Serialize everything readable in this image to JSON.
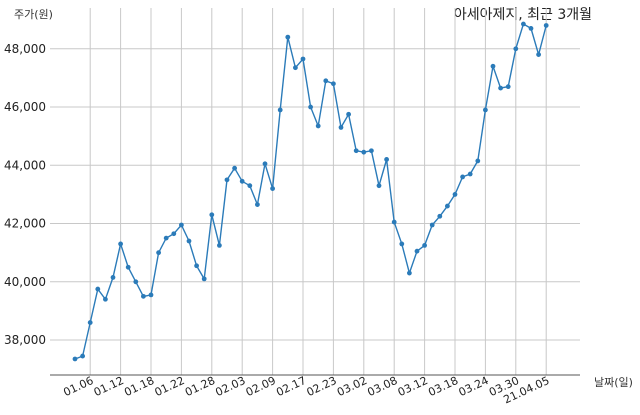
{
  "chart_data": {
    "type": "line",
    "title": "아세아제지, 최근 3개월",
    "ylabel": "주가(원)",
    "xlabel": "날짜(일)",
    "ylim": [
      36800,
      49400
    ],
    "yticks": [
      38000,
      40000,
      42000,
      44000,
      46000,
      48000
    ],
    "ytick_labels": [
      "38,000",
      "40,000",
      "42,000",
      "44,000",
      "46,000",
      "48,000"
    ],
    "xticks": [
      {
        "index": 2,
        "label": "01.06"
      },
      {
        "index": 6,
        "label": "01.12"
      },
      {
        "index": 10,
        "label": "01.18"
      },
      {
        "index": 14,
        "label": "01.22"
      },
      {
        "index": 18,
        "label": "01.28"
      },
      {
        "index": 22,
        "label": "02.03"
      },
      {
        "index": 26,
        "label": "02.09"
      },
      {
        "index": 30,
        "label": "02.17"
      },
      {
        "index": 34,
        "label": "02.23"
      },
      {
        "index": 38,
        "label": "03.02"
      },
      {
        "index": 42,
        "label": "03.08"
      },
      {
        "index": 46,
        "label": "03.12"
      },
      {
        "index": 50,
        "label": "03.18"
      },
      {
        "index": 54,
        "label": "03.24"
      },
      {
        "index": 58,
        "label": "03.30"
      },
      {
        "index": 62,
        "label": "21.04.05"
      }
    ],
    "grid": true,
    "color": "#2b7bb9",
    "series": [
      {
        "values": [
          37350,
          37450,
          38600,
          39750,
          39400,
          40150,
          41300,
          40500,
          40000,
          39500,
          39550,
          41000,
          41500,
          41650,
          41950,
          41400,
          40550,
          40100,
          42300,
          41250,
          43500,
          43900,
          43450,
          43300,
          42650,
          44050,
          43200,
          45900,
          48400,
          47350,
          47650,
          46000,
          45350,
          46900,
          46800,
          45300,
          45750,
          44500,
          44450,
          44500,
          43300,
          44200,
          42050,
          41300,
          40300,
          41050,
          41250,
          41950,
          42250,
          42600,
          43000,
          43600,
          43700,
          44150,
          45900,
          47400,
          46650,
          46700,
          48000,
          48850,
          48700,
          47800,
          48800
        ]
      }
    ]
  }
}
